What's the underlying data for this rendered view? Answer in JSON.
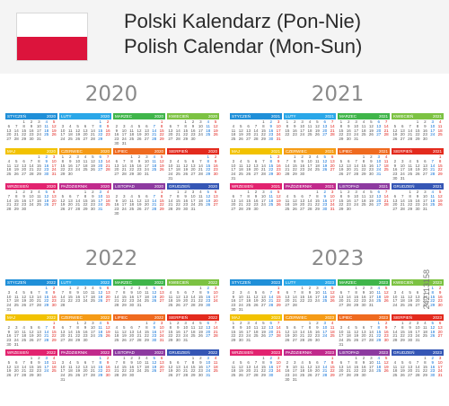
{
  "header": {
    "title_pl": "Polski Kalendarz (Pon-Nie)",
    "title_en": "Polish Calendar (Mon-Sun)",
    "flag_colors": [
      "#ffffff",
      "#dc143c"
    ]
  },
  "months": [
    {
      "name": "STYCZEŃ",
      "color": "#1f8fd8"
    },
    {
      "name": "LUTY",
      "color": "#2aa7e8"
    },
    {
      "name": "MARZEC",
      "color": "#3fb54a"
    },
    {
      "name": "KWIECIEŃ",
      "color": "#7cc242"
    },
    {
      "name": "MAJ",
      "color": "#f2c200"
    },
    {
      "name": "CZERWIEC",
      "color": "#f59b16"
    },
    {
      "name": "LIPIEC",
      "color": "#ef6a1f"
    },
    {
      "name": "SIERPIEŃ",
      "color": "#e32a1d"
    },
    {
      "name": "WRZESIEŃ",
      "color": "#e2236f"
    },
    {
      "name": "PAŹDZIERNIK",
      "color": "#c12a8c"
    },
    {
      "name": "LISTOPAD",
      "color": "#8d3aa0"
    },
    {
      "name": "GRUDZIEŃ",
      "color": "#3556b5"
    }
  ],
  "years": [
    "2020",
    "2021",
    "2022",
    "2023"
  ],
  "watermark": "242113158",
  "colors": {
    "saturday": "#0a6fd6",
    "sunday": "#e0201a",
    "year_text": "#8a8a8a"
  }
}
